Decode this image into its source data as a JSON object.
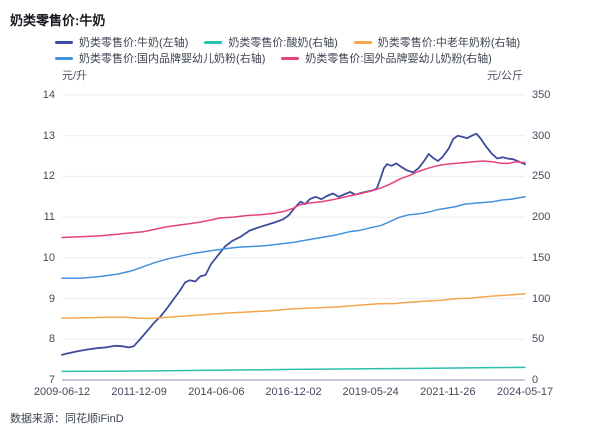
{
  "title": "奶类零售价:牛奶",
  "source": "数据来源：同花顺iFinD",
  "axes": {
    "left_unit": "元/升",
    "right_unit": "元/公斤"
  },
  "colors": {
    "milk": "#3e4b9b",
    "yogurt": "#29c0ac",
    "elderly_powder": "#f5a54f",
    "domestic_infant_powder": "#4591dc",
    "foreign_infant_powder": "#e5417f",
    "gridline": "#e9ecf2",
    "axis_line": "#b4b9c5"
  },
  "chart_data": {
    "type": "line",
    "title": "奶类零售价:牛奶",
    "legend_position": "top",
    "grid": true,
    "x_ticks": [
      "2009-06-12",
      "2011-12-09",
      "2014-06-06",
      "2016-12-02",
      "2019-05-24",
      "2021-11-26",
      "2024-05-17"
    ],
    "x_note": "series point x values are fractions 0-1 along the time axis from 2009-06-12 to 2024-05-17",
    "left_axis": {
      "label": "元/升",
      "min": 7,
      "max": 14,
      "ticks": [
        14,
        13,
        12,
        11,
        10,
        9,
        8,
        7
      ]
    },
    "right_axis": {
      "label": "元/公斤",
      "min": 0,
      "max": 350,
      "ticks": [
        350,
        300,
        250,
        200,
        150,
        100,
        50,
        0
      ]
    },
    "series": [
      {
        "name": "奶类零售价:牛奶(左轴)",
        "axis": "left",
        "color": "#3e4b9b",
        "legend_row": 0,
        "width": 1.8,
        "points": [
          [
            0.0,
            7.62
          ],
          [
            0.015,
            7.66
          ],
          [
            0.035,
            7.71
          ],
          [
            0.055,
            7.75
          ],
          [
            0.075,
            7.78
          ],
          [
            0.095,
            7.8
          ],
          [
            0.115,
            7.84
          ],
          [
            0.13,
            7.83
          ],
          [
            0.145,
            7.8
          ],
          [
            0.155,
            7.83
          ],
          [
            0.17,
            8.02
          ],
          [
            0.185,
            8.22
          ],
          [
            0.2,
            8.42
          ],
          [
            0.212,
            8.55
          ],
          [
            0.228,
            8.78
          ],
          [
            0.242,
            9.0
          ],
          [
            0.255,
            9.2
          ],
          [
            0.266,
            9.4
          ],
          [
            0.276,
            9.45
          ],
          [
            0.288,
            9.42
          ],
          [
            0.299,
            9.55
          ],
          [
            0.31,
            9.58
          ],
          [
            0.322,
            9.85
          ],
          [
            0.336,
            10.05
          ],
          [
            0.352,
            10.28
          ],
          [
            0.368,
            10.42
          ],
          [
            0.386,
            10.52
          ],
          [
            0.405,
            10.67
          ],
          [
            0.425,
            10.75
          ],
          [
            0.445,
            10.82
          ],
          [
            0.462,
            10.88
          ],
          [
            0.478,
            10.95
          ],
          [
            0.49,
            11.05
          ],
          [
            0.502,
            11.22
          ],
          [
            0.515,
            11.38
          ],
          [
            0.525,
            11.32
          ],
          [
            0.535,
            11.44
          ],
          [
            0.548,
            11.5
          ],
          [
            0.56,
            11.44
          ],
          [
            0.572,
            11.52
          ],
          [
            0.585,
            11.58
          ],
          [
            0.598,
            11.5
          ],
          [
            0.61,
            11.56
          ],
          [
            0.622,
            11.62
          ],
          [
            0.634,
            11.55
          ],
          [
            0.648,
            11.6
          ],
          [
            0.66,
            11.63
          ],
          [
            0.672,
            11.66
          ],
          [
            0.68,
            11.7
          ],
          [
            0.688,
            11.95
          ],
          [
            0.695,
            12.2
          ],
          [
            0.702,
            12.3
          ],
          [
            0.712,
            12.26
          ],
          [
            0.722,
            12.32
          ],
          [
            0.732,
            12.24
          ],
          [
            0.745,
            12.15
          ],
          [
            0.758,
            12.1
          ],
          [
            0.77,
            12.2
          ],
          [
            0.782,
            12.38
          ],
          [
            0.792,
            12.55
          ],
          [
            0.802,
            12.45
          ],
          [
            0.812,
            12.38
          ],
          [
            0.822,
            12.48
          ],
          [
            0.835,
            12.68
          ],
          [
            0.845,
            12.92
          ],
          [
            0.855,
            13.0
          ],
          [
            0.865,
            12.97
          ],
          [
            0.875,
            12.94
          ],
          [
            0.885,
            13.0
          ],
          [
            0.895,
            13.05
          ],
          [
            0.905,
            12.92
          ],
          [
            0.915,
            12.75
          ],
          [
            0.928,
            12.56
          ],
          [
            0.94,
            12.44
          ],
          [
            0.952,
            12.47
          ],
          [
            0.962,
            12.44
          ],
          [
            0.975,
            12.42
          ],
          [
            0.988,
            12.36
          ],
          [
            1.0,
            12.3
          ]
        ]
      },
      {
        "name": "奶类零售价:酸奶(右轴)",
        "axis": "right",
        "color": "#29c0ac",
        "legend_row": 0,
        "width": 1.5,
        "points": [
          [
            0.0,
            10.5
          ],
          [
            0.1,
            10.8
          ],
          [
            0.2,
            11.2
          ],
          [
            0.3,
            11.8
          ],
          [
            0.4,
            12.4
          ],
          [
            0.5,
            13.0
          ],
          [
            0.6,
            13.5
          ],
          [
            0.7,
            14.0
          ],
          [
            0.8,
            14.5
          ],
          [
            0.9,
            15.0
          ],
          [
            1.0,
            15.5
          ]
        ]
      },
      {
        "name": "奶类零售价:中老年奶粉(右轴)",
        "axis": "right",
        "color": "#f5a54f",
        "legend_row": 0,
        "width": 1.5,
        "points": [
          [
            0.0,
            76
          ],
          [
            0.05,
            76.5
          ],
          [
            0.1,
            77
          ],
          [
            0.14,
            77
          ],
          [
            0.165,
            76
          ],
          [
            0.19,
            75.5
          ],
          [
            0.215,
            76.5
          ],
          [
            0.25,
            78
          ],
          [
            0.3,
            80
          ],
          [
            0.35,
            82
          ],
          [
            0.4,
            83.5
          ],
          [
            0.45,
            85
          ],
          [
            0.5,
            87.5
          ],
          [
            0.55,
            88.5
          ],
          [
            0.6,
            90
          ],
          [
            0.645,
            92
          ],
          [
            0.68,
            93.5
          ],
          [
            0.72,
            94
          ],
          [
            0.75,
            95.5
          ],
          [
            0.79,
            97
          ],
          [
            0.82,
            98
          ],
          [
            0.85,
            100
          ],
          [
            0.88,
            100.5
          ],
          [
            0.91,
            102
          ],
          [
            0.94,
            103.5
          ],
          [
            0.97,
            104.5
          ],
          [
            1.0,
            106
          ]
        ]
      },
      {
        "name": "奶类零售价:国内品牌婴幼儿奶粉(右轴)",
        "axis": "right",
        "color": "#4591dc",
        "legend_row": 1,
        "width": 1.5,
        "points": [
          [
            0.0,
            125
          ],
          [
            0.04,
            125
          ],
          [
            0.08,
            127
          ],
          [
            0.12,
            130
          ],
          [
            0.15,
            134
          ],
          [
            0.175,
            139
          ],
          [
            0.2,
            144
          ],
          [
            0.23,
            149
          ],
          [
            0.255,
            152
          ],
          [
            0.28,
            155
          ],
          [
            0.3,
            157
          ],
          [
            0.325,
            159
          ],
          [
            0.35,
            161
          ],
          [
            0.38,
            163
          ],
          [
            0.41,
            164
          ],
          [
            0.44,
            165
          ],
          [
            0.47,
            167
          ],
          [
            0.5,
            169
          ],
          [
            0.53,
            172
          ],
          [
            0.56,
            175
          ],
          [
            0.59,
            178
          ],
          [
            0.62,
            182
          ],
          [
            0.645,
            184
          ],
          [
            0.667,
            187
          ],
          [
            0.69,
            190
          ],
          [
            0.71,
            195
          ],
          [
            0.73,
            200
          ],
          [
            0.75,
            203
          ],
          [
            0.77,
            204
          ],
          [
            0.79,
            206
          ],
          [
            0.81,
            209
          ],
          [
            0.83,
            211
          ],
          [
            0.85,
            213
          ],
          [
            0.87,
            216
          ],
          [
            0.89,
            217
          ],
          [
            0.91,
            218
          ],
          [
            0.93,
            219
          ],
          [
            0.95,
            221
          ],
          [
            0.97,
            222
          ],
          [
            1.0,
            225
          ]
        ]
      },
      {
        "name": "奶类零售价:国外品牌婴幼儿奶粉(右轴)",
        "axis": "right",
        "color": "#e5417f",
        "legend_row": 1,
        "width": 1.5,
        "points": [
          [
            0.0,
            175
          ],
          [
            0.04,
            176
          ],
          [
            0.08,
            177
          ],
          [
            0.12,
            179
          ],
          [
            0.155,
            181
          ],
          [
            0.175,
            182
          ],
          [
            0.2,
            185
          ],
          [
            0.225,
            188
          ],
          [
            0.25,
            190
          ],
          [
            0.275,
            192
          ],
          [
            0.3,
            194
          ],
          [
            0.325,
            197
          ],
          [
            0.34,
            199
          ],
          [
            0.37,
            200
          ],
          [
            0.4,
            202
          ],
          [
            0.43,
            203
          ],
          [
            0.46,
            205
          ],
          [
            0.48,
            207
          ],
          [
            0.5,
            211
          ],
          [
            0.513,
            215
          ],
          [
            0.53,
            217
          ],
          [
            0.56,
            219
          ],
          [
            0.59,
            222
          ],
          [
            0.62,
            226
          ],
          [
            0.645,
            229
          ],
          [
            0.667,
            232
          ],
          [
            0.69,
            236
          ],
          [
            0.71,
            241
          ],
          [
            0.73,
            247
          ],
          [
            0.75,
            251
          ],
          [
            0.77,
            256
          ],
          [
            0.79,
            260
          ],
          [
            0.81,
            263
          ],
          [
            0.83,
            265
          ],
          [
            0.85,
            266
          ],
          [
            0.87,
            267
          ],
          [
            0.89,
            268
          ],
          [
            0.91,
            269
          ],
          [
            0.93,
            268
          ],
          [
            0.95,
            266
          ],
          [
            0.965,
            266
          ],
          [
            0.98,
            268
          ],
          [
            1.0,
            267
          ]
        ]
      }
    ]
  }
}
